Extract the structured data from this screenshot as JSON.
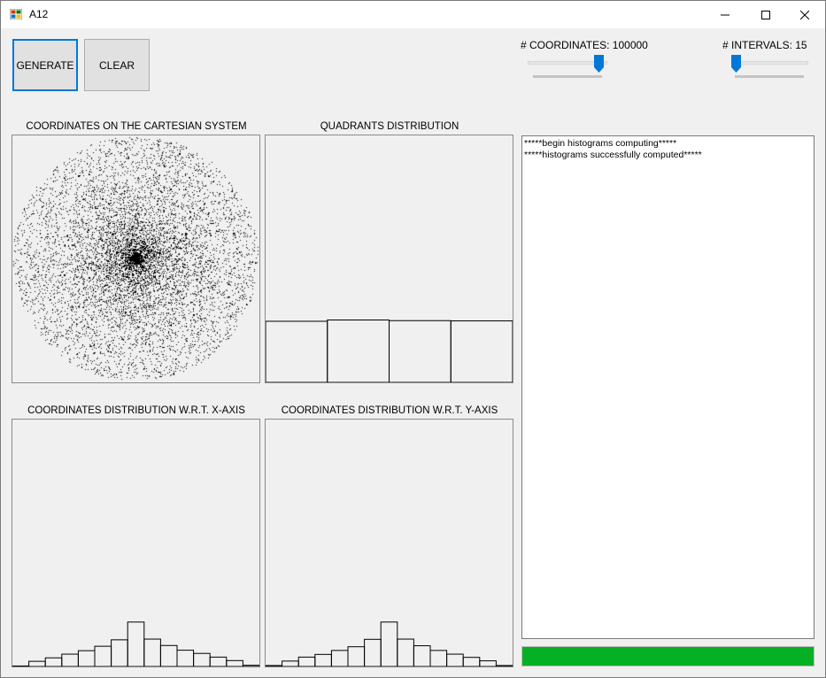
{
  "window": {
    "title": "A12",
    "icons": {
      "app": "app-icon",
      "minimize": "minimize-icon",
      "maximize": "maximize-icon",
      "close": "close-icon"
    }
  },
  "toolbar": {
    "generate_label": "GENERATE",
    "clear_label": "CLEAR"
  },
  "controls": {
    "coordinates_label": "# COORDINATES: 100000",
    "coordinates_value": 100000,
    "coordinates_slider_fraction": 0.95,
    "intervals_label": "# INTERVALS: 15",
    "intervals_value": 15,
    "intervals_slider_fraction": 0.0
  },
  "panels": {
    "cartesian_title": "COORDINATES ON THE CARTESIAN SYSTEM",
    "quadrants_title": "QUADRANTS DISTRIBUTION",
    "xaxis_title": "COORDINATES DISTRIBUTION W.R.T. X-AXIS",
    "yaxis_title": "COORDINATES DISTRIBUTION W.R.T. Y-AXIS"
  },
  "chart_data": [
    {
      "type": "scatter",
      "title": "COORDINATES ON THE CARTESIAN SYSTEM",
      "shape": "disk",
      "point_count": 100000,
      "xlim": [
        -1,
        1
      ],
      "ylim": [
        -1,
        1
      ]
    },
    {
      "type": "bar",
      "title": "QUADRANTS DISTRIBUTION",
      "categories": [
        "",
        "",
        "",
        ""
      ],
      "values": [
        0.2474,
        0.2526,
        0.25,
        0.249
      ],
      "ylim": [
        0,
        1
      ]
    },
    {
      "type": "bar",
      "title": "COORDINATES DISTRIBUTION W.R.T. X-AXIS",
      "values": [
        0.002,
        0.021,
        0.035,
        0.05,
        0.064,
        0.082,
        0.108,
        0.18,
        0.111,
        0.085,
        0.066,
        0.053,
        0.038,
        0.024,
        0.005
      ],
      "ylim": [
        0,
        1
      ]
    },
    {
      "type": "bar",
      "title": "COORDINATES DISTRIBUTION W.R.T. Y-AXIS",
      "values": [
        0.004,
        0.022,
        0.038,
        0.049,
        0.065,
        0.08,
        0.11,
        0.18,
        0.111,
        0.084,
        0.065,
        0.05,
        0.037,
        0.023,
        0.004
      ],
      "ylim": [
        0,
        1
      ]
    }
  ],
  "log": {
    "lines": [
      "*****begin histograms computing*****",
      "*****histograms successfully computed*****"
    ]
  },
  "progress": {
    "value_fraction": 1.0,
    "color": "#06b025"
  }
}
